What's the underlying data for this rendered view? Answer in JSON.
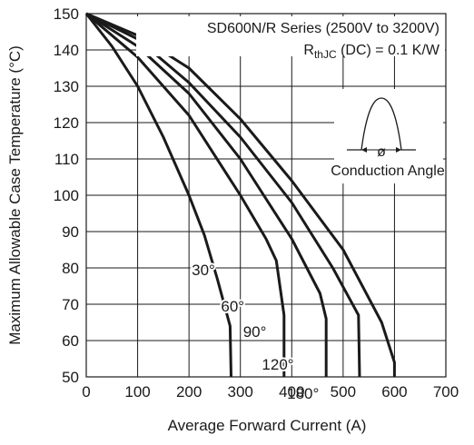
{
  "chart_data": {
    "type": "line",
    "xlabel": "Average Forward Current (A)",
    "ylabel": "Maximum Allowable Case Temperature (°C)",
    "xlim": [
      0,
      700
    ],
    "ylim": [
      50,
      150
    ],
    "xticks": [
      "0",
      "100",
      "200",
      "300",
      "400",
      "500",
      "600",
      "700"
    ],
    "yticks": [
      "50",
      "60",
      "70",
      "80",
      "90",
      "100",
      "110",
      "120",
      "130",
      "140",
      "150"
    ],
    "grid": true,
    "annotation_line1": "SD600N/R Series (2500V to 3200V)",
    "annotation_line2_main": "R",
    "annotation_line2_sub": "thJC",
    "annotation_line2_rest": " (DC) = 0.1 K/W",
    "inset_label": "Conduction Angle",
    "inset_symbol": "ø",
    "series": [
      {
        "name": "30°",
        "points": [
          [
            0,
            150
          ],
          [
            50,
            141
          ],
          [
            100,
            130
          ],
          [
            150,
            116
          ],
          [
            200,
            100
          ],
          [
            230,
            89
          ],
          [
            255,
            77
          ],
          [
            280,
            64
          ],
          [
            282,
            50
          ]
        ]
      },
      {
        "name": "60°",
        "points": [
          [
            0,
            150
          ],
          [
            100,
            138
          ],
          [
            200,
            122
          ],
          [
            300,
            100
          ],
          [
            350,
            88
          ],
          [
            370,
            82
          ],
          [
            385,
            67
          ],
          [
            385,
            50
          ]
        ]
      },
      {
        "name": "90°",
        "points": [
          [
            0,
            150
          ],
          [
            100,
            141
          ],
          [
            200,
            128
          ],
          [
            300,
            110
          ],
          [
            400,
            88
          ],
          [
            455,
            73
          ],
          [
            467,
            66
          ],
          [
            467,
            50
          ]
        ]
      },
      {
        "name": "120°",
        "points": [
          [
            0,
            150
          ],
          [
            100,
            143
          ],
          [
            200,
            131
          ],
          [
            300,
            116
          ],
          [
            400,
            98
          ],
          [
            480,
            80
          ],
          [
            530,
            67
          ],
          [
            532,
            50
          ]
        ]
      },
      {
        "name": "180°",
        "points": [
          [
            0,
            150
          ],
          [
            100,
            144
          ],
          [
            200,
            135
          ],
          [
            300,
            121
          ],
          [
            400,
            104
          ],
          [
            500,
            85
          ],
          [
            575,
            65
          ],
          [
            600,
            54
          ],
          [
            600,
            50
          ]
        ]
      }
    ]
  }
}
